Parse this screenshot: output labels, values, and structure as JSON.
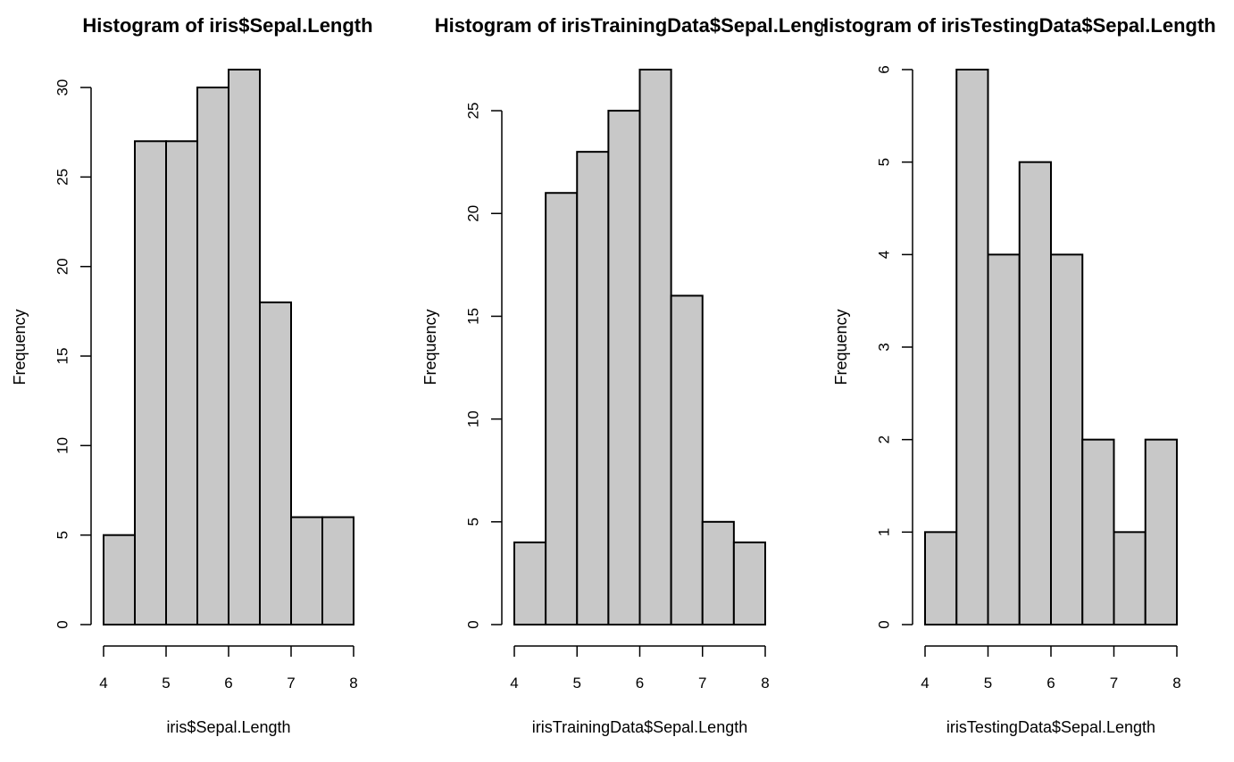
{
  "colors": {
    "bar_fill": "#c8c8c8",
    "stroke": "#000000",
    "background": "#ffffff"
  },
  "chart_data": [
    {
      "type": "bar",
      "title": "Histogram of iris$Sepal.Length",
      "xlabel": "iris$Sepal.Length",
      "ylabel": "Frequency",
      "bin_edges": [
        4,
        4.5,
        5,
        5.5,
        6,
        6.5,
        7,
        7.5,
        8
      ],
      "values": [
        5,
        27,
        27,
        30,
        31,
        18,
        6,
        6
      ],
      "xlim": [
        4,
        8
      ],
      "ylim": [
        0,
        31
      ],
      "xticks": [
        4,
        5,
        6,
        7,
        8
      ],
      "yticks": [
        0,
        5,
        10,
        15,
        20,
        25,
        30
      ],
      "grid": false,
      "legend": "none"
    },
    {
      "type": "bar",
      "title": "Histogram of irisTrainingData$Sepal.Length",
      "xlabel": "irisTrainingData$Sepal.Length",
      "ylabel": "Frequency",
      "bin_edges": [
        4,
        4.5,
        5,
        5.5,
        6,
        6.5,
        7,
        7.5,
        8
      ],
      "values": [
        4,
        21,
        23,
        25,
        27,
        16,
        5,
        4
      ],
      "xlim": [
        4,
        8
      ],
      "ylim": [
        0,
        27
      ],
      "xticks": [
        4,
        5,
        6,
        7,
        8
      ],
      "yticks": [
        0,
        5,
        10,
        15,
        20,
        25
      ],
      "grid": false,
      "legend": "none"
    },
    {
      "type": "bar",
      "title": "Histogram of irisTestingData$Sepal.Length",
      "xlabel": "irisTestingData$Sepal.Length",
      "ylabel": "Frequency",
      "bin_edges": [
        4,
        4.5,
        5,
        5.5,
        6,
        6.5,
        7,
        7.5,
        8
      ],
      "values": [
        1,
        6,
        4,
        5,
        4,
        2,
        1,
        2
      ],
      "xlim": [
        4,
        8
      ],
      "ylim": [
        0,
        6
      ],
      "xticks": [
        4,
        5,
        6,
        7,
        8
      ],
      "yticks": [
        0,
        1,
        2,
        3,
        4,
        5,
        6
      ],
      "grid": false,
      "legend": "none"
    }
  ]
}
